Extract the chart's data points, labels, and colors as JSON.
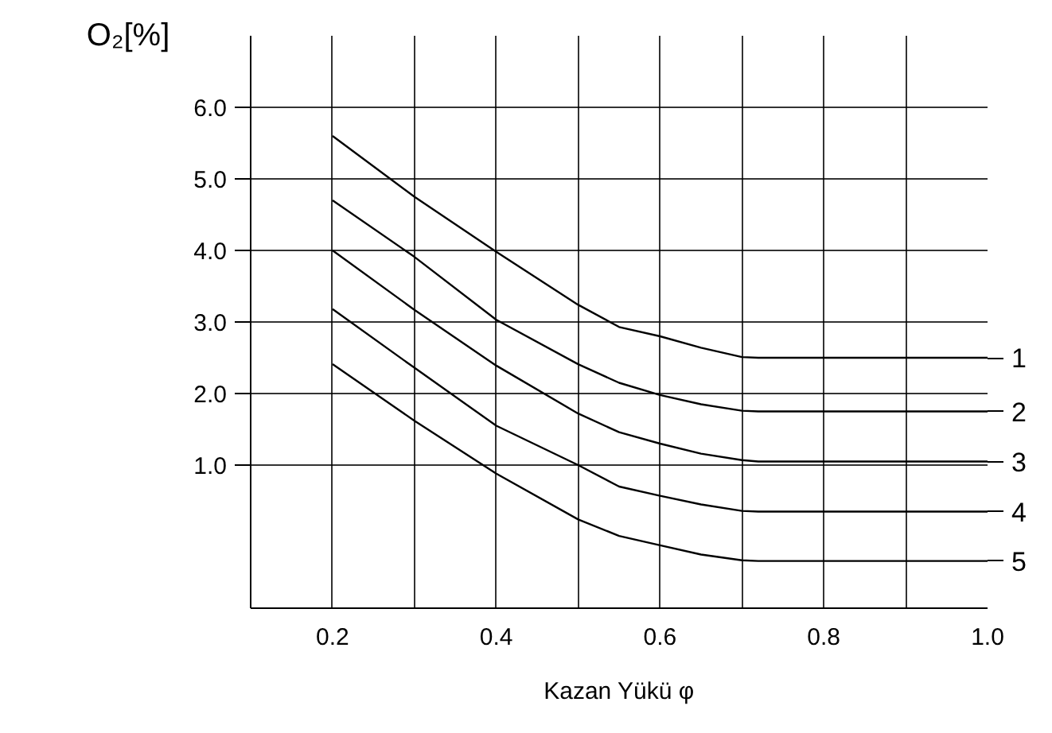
{
  "chart_data": {
    "type": "line",
    "xlabel": "Kazan Yükü φ",
    "ylabel": "O₂[%]",
    "x": [
      0.2,
      0.3,
      0.4,
      0.5,
      0.55,
      0.6,
      0.65,
      0.7,
      0.72,
      1.0
    ],
    "series": [
      {
        "name": "1",
        "color": "#000000",
        "values": [
          5.6,
          4.75,
          3.98,
          3.24,
          2.93,
          2.8,
          2.64,
          2.51,
          2.5,
          2.5
        ]
      },
      {
        "name": "2",
        "color": "#000000",
        "values": [
          4.7,
          3.91,
          3.03,
          2.41,
          2.15,
          1.98,
          1.85,
          1.76,
          1.75,
          1.75
        ]
      },
      {
        "name": "3",
        "color": "#000000",
        "values": [
          4.0,
          3.17,
          2.39,
          1.72,
          1.46,
          1.3,
          1.16,
          1.07,
          1.05,
          1.05
        ]
      },
      {
        "name": "4",
        "color": "#000000",
        "values": [
          3.18,
          2.36,
          1.55,
          1.0,
          0.7,
          0.57,
          0.45,
          0.36,
          0.35,
          0.35
        ]
      },
      {
        "name": "5",
        "color": "#000000",
        "values": [
          2.41,
          1.62,
          0.88,
          0.24,
          0.01,
          -0.12,
          -0.25,
          -0.33,
          -0.34,
          -0.34
        ]
      }
    ],
    "xlim": [
      0.1,
      1.0
    ],
    "ylim": [
      -1,
      7
    ],
    "xticks": [
      {
        "value": 0.1,
        "label": null
      },
      {
        "value": 0.2,
        "label": "0.2"
      },
      {
        "value": 0.3,
        "label": null
      },
      {
        "value": 0.4,
        "label": "0.4"
      },
      {
        "value": 0.5,
        "label": null
      },
      {
        "value": 0.6,
        "label": "0.6"
      },
      {
        "value": 0.7,
        "label": null
      },
      {
        "value": 0.8,
        "label": "0.8"
      },
      {
        "value": 0.9,
        "label": null
      },
      {
        "value": 1.0,
        "label": "1.0"
      }
    ],
    "yticks": [
      {
        "value": 1,
        "label": "1.0"
      },
      {
        "value": 2,
        "label": "2.0"
      },
      {
        "value": 3,
        "label": "3.0"
      },
      {
        "value": 4,
        "label": "4.0"
      },
      {
        "value": 5,
        "label": "5.0"
      },
      {
        "value": 6,
        "label": "6.0"
      }
    ],
    "grid": true,
    "legend": "right",
    "marker": "none",
    "line_style": "solid"
  }
}
